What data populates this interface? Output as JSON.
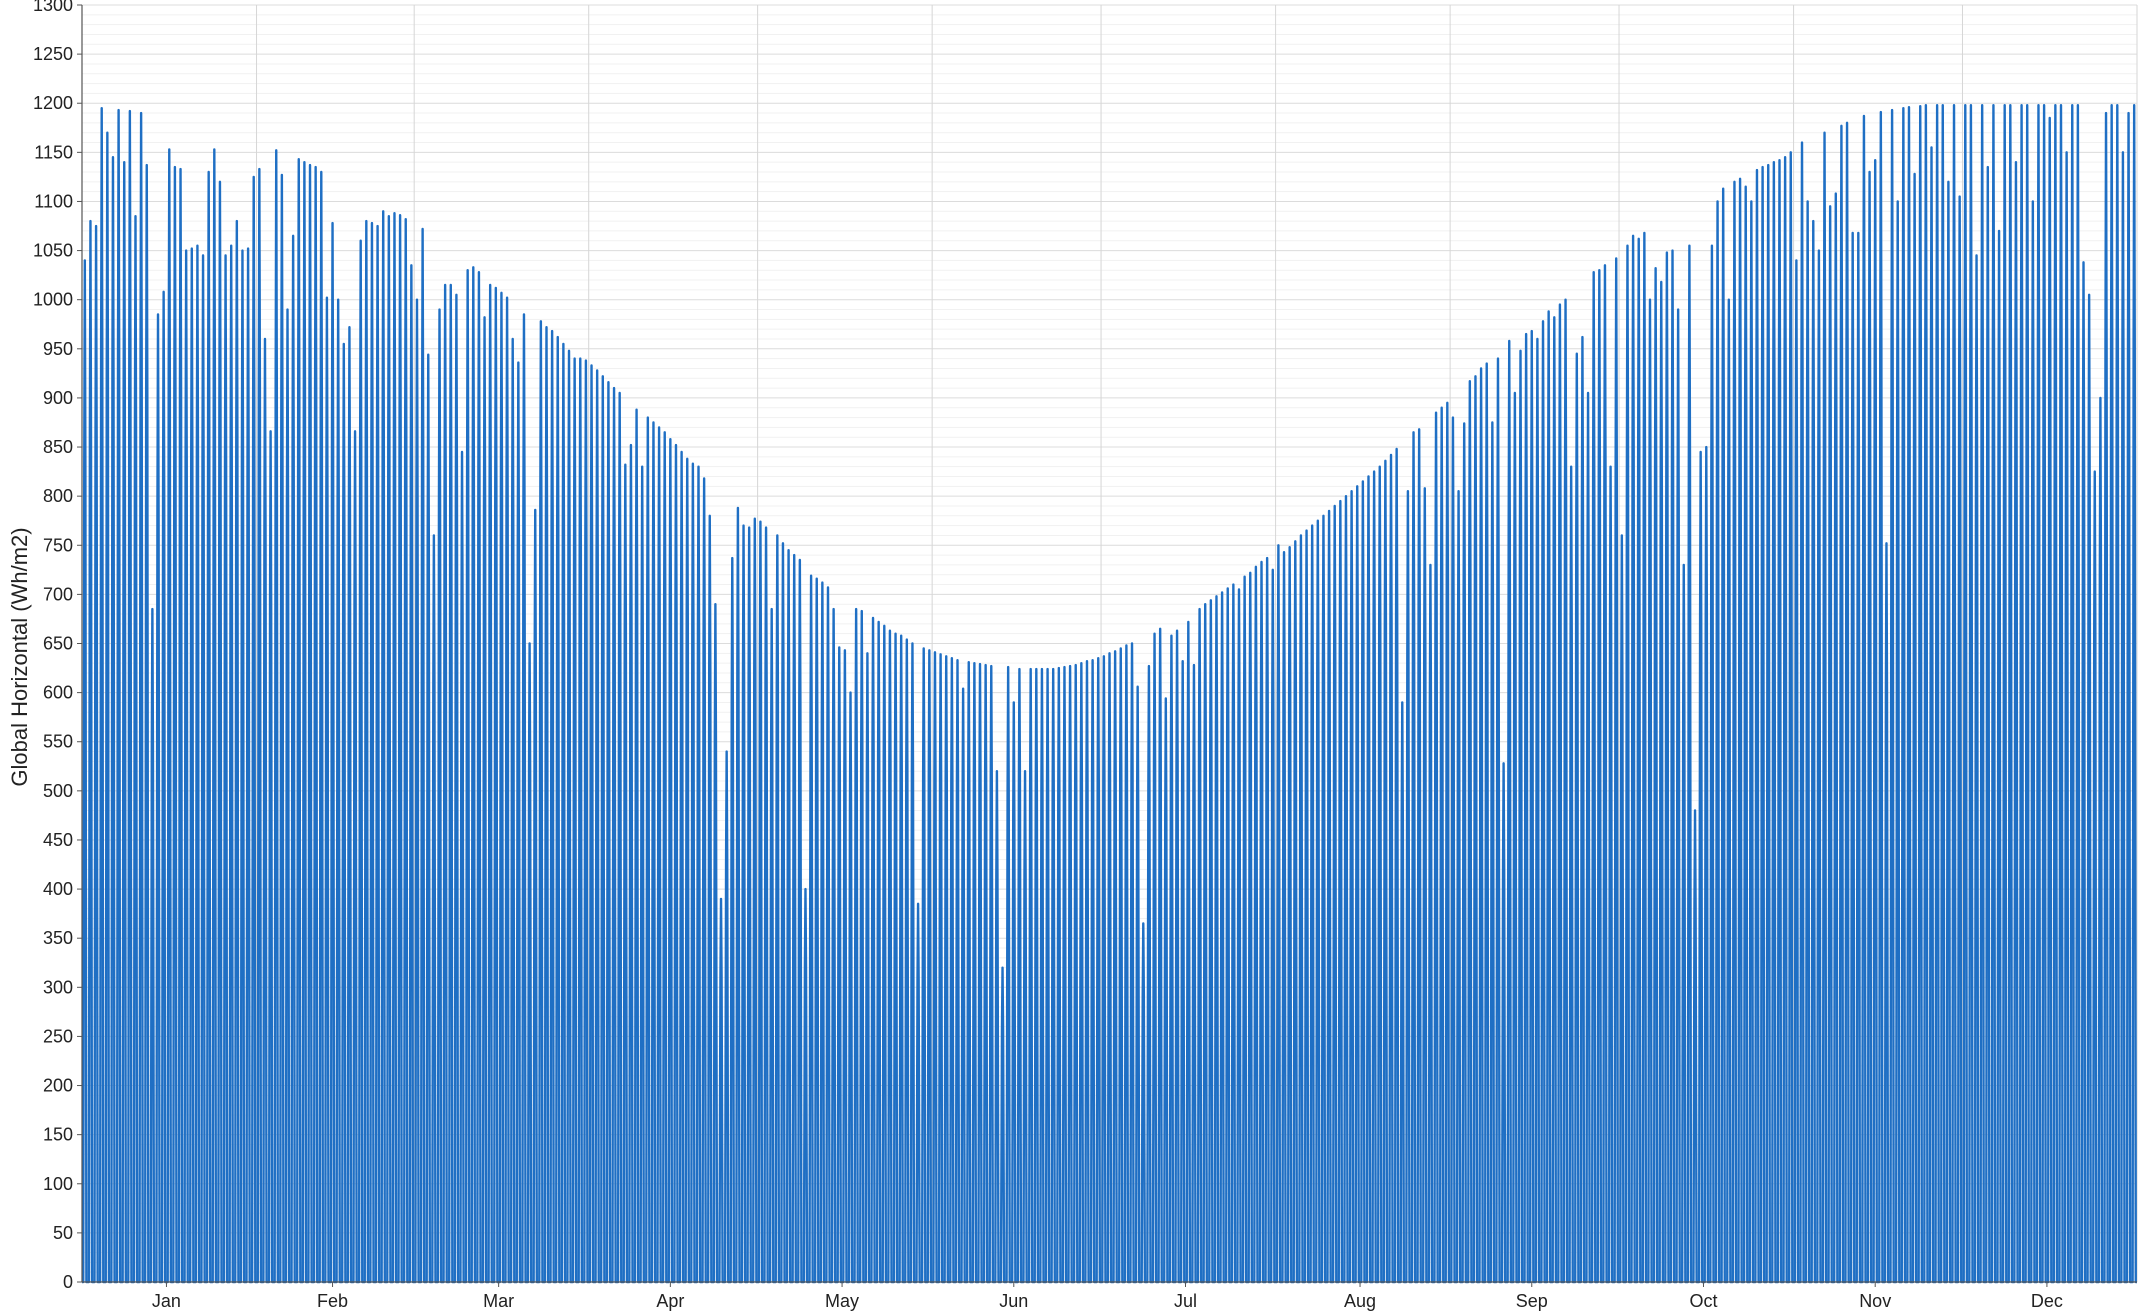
{
  "chart_data": {
    "type": "line",
    "title": "",
    "xlabel": "",
    "ylabel": "Global Horizontal (Wh/m2)",
    "ylim": [
      0,
      1300
    ],
    "y_ticks": [
      0,
      50,
      100,
      150,
      200,
      250,
      300,
      350,
      400,
      450,
      500,
      550,
      600,
      650,
      700,
      750,
      800,
      850,
      900,
      950,
      1000,
      1050,
      1100,
      1150,
      1200,
      1250,
      1300
    ],
    "x_axis": {
      "unit": "day of year",
      "range": [
        1,
        366
      ]
    },
    "x_tick_labels": [
      {
        "label": "Jan",
        "day": 16
      },
      {
        "label": "Feb",
        "day": 45.5
      },
      {
        "label": "Mar",
        "day": 75
      },
      {
        "label": "Apr",
        "day": 105.5
      },
      {
        "label": "May",
        "day": 136
      },
      {
        "label": "Jun",
        "day": 166.5
      },
      {
        "label": "Jul",
        "day": 197
      },
      {
        "label": "Aug",
        "day": 228
      },
      {
        "label": "Sep",
        "day": 258.5
      },
      {
        "label": "Oct",
        "day": 289
      },
      {
        "label": "Nov",
        "day": 319.5
      },
      {
        "label": "Dec",
        "day": 350
      }
    ],
    "month_boundaries": [
      1,
      32,
      60,
      91,
      121,
      152,
      182,
      213,
      244,
      274,
      305,
      335,
      366
    ],
    "grid": true,
    "legend": "none",
    "series": [
      {
        "color": "#1f6fc4",
        "daily_peaks_note": "one value per day, day 1 to day 365",
        "daily_peaks": [
          1040,
          1080,
          1075,
          1195,
          1170,
          1145,
          1193,
          1140,
          1192,
          1085,
          1190,
          1137,
          685,
          985,
          1008,
          1153,
          1135,
          1133,
          1050,
          1052,
          1055,
          1045,
          1130,
          1153,
          1120,
          1045,
          1055,
          1080,
          1050,
          1052,
          1125,
          1133,
          960,
          866,
          1152,
          1127,
          990,
          1065,
          1143,
          1140,
          1137,
          1135,
          1130,
          1002,
          1078,
          1000,
          955,
          972,
          866,
          1060,
          1080,
          1078,
          1075,
          1090,
          1085,
          1088,
          1086,
          1082,
          1035,
          1000,
          1072,
          944,
          760,
          990,
          1015,
          1015,
          1005,
          845,
          1030,
          1033,
          1028,
          982,
          1015,
          1012,
          1007,
          1002,
          960,
          936,
          985,
          650,
          786,
          978,
          972,
          968,
          962,
          955,
          948,
          940,
          940,
          938,
          933,
          928,
          922,
          916,
          910,
          905,
          832,
          852,
          888,
          830,
          880,
          875,
          870,
          865,
          858,
          852,
          845,
          838,
          833,
          830,
          818,
          780,
          690,
          390,
          540,
          737,
          788,
          770,
          768,
          777,
          774,
          768,
          685,
          760,
          752,
          745,
          740,
          735,
          400,
          719,
          716,
          712,
          707,
          685,
          646,
          643,
          600,
          685,
          683,
          640,
          676,
          672,
          668,
          663,
          660,
          658,
          654,
          650,
          385,
          645,
          643,
          641,
          639,
          637,
          635,
          633,
          604,
          631,
          630,
          629,
          628,
          627,
          520,
          320,
          626,
          590,
          624,
          520,
          624,
          624,
          624,
          624,
          624,
          625,
          626,
          627,
          628,
          630,
          632,
          633,
          635,
          637,
          640,
          642,
          645,
          648,
          650,
          606,
          365,
          627,
          660,
          665,
          594,
          658,
          663,
          632,
          672,
          628,
          685,
          690,
          694,
          698,
          702,
          706,
          710,
          705,
          718,
          722,
          728,
          733,
          737,
          725,
          750,
          743,
          748,
          754,
          760,
          765,
          770,
          775,
          780,
          785,
          790,
          795,
          800,
          805,
          810,
          815,
          820,
          825,
          830,
          836,
          842,
          848,
          590,
          805,
          865,
          868,
          808,
          730,
          885,
          890,
          895,
          880,
          805,
          874,
          917,
          922,
          930,
          935,
          875,
          940,
          528,
          958,
          905,
          948,
          965,
          968,
          960,
          978,
          988,
          982,
          995,
          1000,
          830,
          945,
          962,
          905,
          1028,
          1030,
          1035,
          830,
          1042,
          760,
          1055,
          1065,
          1062,
          1068,
          1000,
          1032,
          1018,
          1048,
          1050,
          990,
          730,
          1055,
          480,
          845,
          850,
          1055,
          1100,
          1113,
          1000,
          1120,
          1123,
          1115,
          1100,
          1132,
          1135,
          1137,
          1140,
          1142,
          1145,
          1150,
          1155,
          1160,
          1162,
          1165,
          1168,
          1170,
          1172,
          1175,
          1177,
          1180,
          1182,
          1185,
          1187,
          1189,
          1190,
          1191,
          1192,
          1193,
          1194,
          1195,
          1196,
          1197,
          1197,
          1198,
          1198,
          1198,
          1198,
          1198,
          1198,
          1198,
          1198,
          1198,
          1198,
          1198,
          1198,
          1198,
          1198,
          1198,
          1198,
          1198,
          1198,
          1198,
          1198,
          1198,
          1198,
          1198,
          1198,
          1198,
          1198,
          1198,
          1198,
          1198,
          1198,
          1198,
          1198,
          1198,
          1198,
          1198,
          1198,
          1198,
          1198
        ],
        "dips": {
          "305": 1040,
          "307": 1100,
          "308": 1080,
          "309": 1050,
          "311": 1095,
          "312": 1108,
          "315": 1068,
          "316": 1068,
          "318": 1130,
          "319": 1142,
          "321": 752,
          "323": 1100,
          "326": 1128,
          "329": 1155,
          "332": 1120,
          "334": 1105,
          "337": 1045,
          "339": 1135,
          "341": 1070,
          "344": 1140,
          "347": 1100,
          "350": 1185,
          "353": 1150,
          "356": 1038,
          "357": 1005,
          "358": 825,
          "359": 900,
          "360": 1190,
          "363": 1150,
          "364": 1190
        }
      }
    ]
  }
}
